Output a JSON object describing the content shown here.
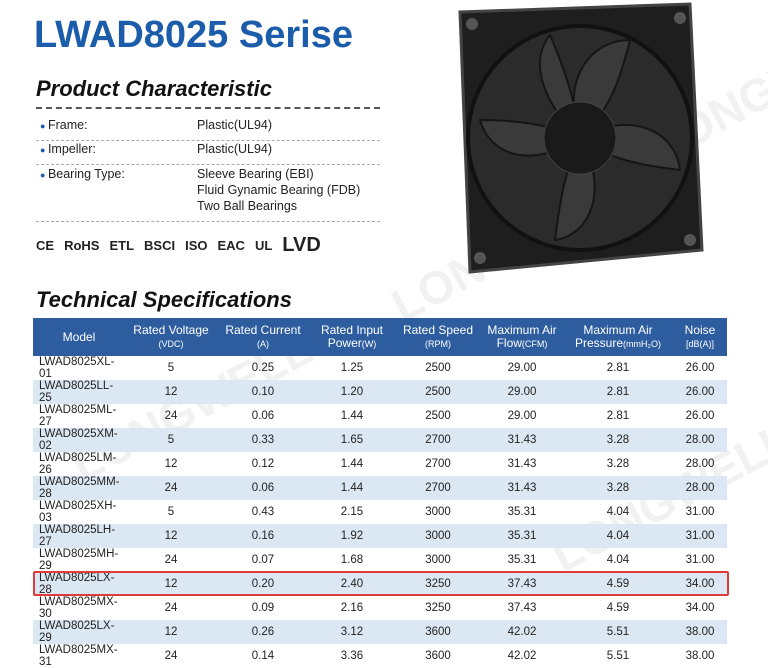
{
  "title": "LWAD8025 Serise",
  "watermark": "LONGWELL",
  "characteristics": {
    "heading": "Product Characteristic",
    "rows": [
      {
        "label": "Frame:",
        "values": [
          "Plastic(UL94)"
        ]
      },
      {
        "label": "Impeller:",
        "values": [
          "Plastic(UL94)"
        ]
      },
      {
        "label": "Bearing Type:",
        "values": [
          "Sleeve Bearing (EBI)",
          "Fluid Gynamic Bearing (FDB)",
          "Two Ball Bearings"
        ]
      }
    ]
  },
  "certifications": [
    "CE",
    "RoHS",
    "ETL",
    "BSCI",
    "ISO",
    "EAC",
    "UL",
    "LVD"
  ],
  "specifications": {
    "heading": "Technical Specifications",
    "columns": [
      {
        "lines": [
          "Model"
        ]
      },
      {
        "lines": [
          "Rated Voltage"
        ],
        "unit": "(VDC)"
      },
      {
        "lines": [
          "Rated Current"
        ],
        "unit": "(A)"
      },
      {
        "lines": [
          "Rated Input",
          "Power"
        ],
        "unit": "(W)"
      },
      {
        "lines": [
          "Rated Speed"
        ],
        "unit": "(RPM)"
      },
      {
        "lines": [
          "Maximum Air",
          "Flow"
        ],
        "unit": "(CFM)"
      },
      {
        "lines": [
          "Maximum Air",
          "Pressure"
        ],
        "unit": "(mmH₂O)"
      },
      {
        "lines": [
          "Noise"
        ],
        "unit": "[dB(A)]"
      }
    ],
    "highlighted_row": 9,
    "rows": [
      [
        "LWAD8025XL-01",
        "5",
        "0.25",
        "1.25",
        "2500",
        "29.00",
        "2.81",
        "26.00"
      ],
      [
        "LWAD8025LL-25",
        "12",
        "0.10",
        "1.20",
        "2500",
        "29.00",
        "2.81",
        "26.00"
      ],
      [
        "LWAD8025ML-27",
        "24",
        "0.06",
        "1.44",
        "2500",
        "29.00",
        "2.81",
        "26.00"
      ],
      [
        "LWAD8025XM-02",
        "5",
        "0.33",
        "1.65",
        "2700",
        "31.43",
        "3.28",
        "28.00"
      ],
      [
        "LWAD8025LM-26",
        "12",
        "0.12",
        "1.44",
        "2700",
        "31.43",
        "3.28",
        "28.00"
      ],
      [
        "LWAD8025MM-28",
        "24",
        "0.06",
        "1.44",
        "2700",
        "31.43",
        "3.28",
        "28.00"
      ],
      [
        "LWAD8025XH-03",
        "5",
        "0.43",
        "2.15",
        "3000",
        "35.31",
        "4.04",
        "31.00"
      ],
      [
        "LWAD8025LH-27",
        "12",
        "0.16",
        "1.92",
        "3000",
        "35.31",
        "4.04",
        "31.00"
      ],
      [
        "LWAD8025MH-29",
        "24",
        "0.07",
        "1.68",
        "3000",
        "35.31",
        "4.04",
        "31.00"
      ],
      [
        "LWAD8025LX-28",
        "12",
        "0.20",
        "2.40",
        "3250",
        "37.43",
        "4.59",
        "34.00"
      ],
      [
        "LWAD8025MX-30",
        "24",
        "0.09",
        "2.16",
        "3250",
        "37.43",
        "4.59",
        "34.00"
      ],
      [
        "LWAD8025LX-29",
        "12",
        "0.26",
        "3.12",
        "3600",
        "42.02",
        "5.51",
        "38.00"
      ],
      [
        "LWAD8025MX-31",
        "24",
        "0.14",
        "3.36",
        "3600",
        "42.02",
        "5.51",
        "38.00"
      ]
    ]
  }
}
